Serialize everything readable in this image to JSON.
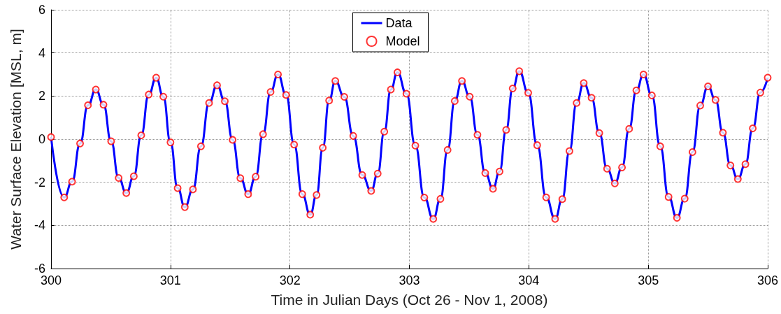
{
  "chart_data": {
    "type": "line",
    "xlabel": "Time in Julian Days (Oct 26 - Nov 1, 2008)",
    "ylabel": "Water Surface Elevation [MSL, m]",
    "x": [
      300.0,
      300.11,
      300.176,
      300.243,
      300.309,
      300.375,
      300.439,
      300.503,
      300.566,
      300.63,
      300.693,
      300.755,
      300.818,
      300.88,
      300.94,
      301.0,
      301.06,
      301.12,
      301.188,
      301.255,
      301.323,
      301.39,
      301.455,
      301.52,
      301.585,
      301.65,
      301.713,
      301.775,
      301.838,
      301.9,
      301.968,
      302.035,
      302.103,
      302.17,
      302.223,
      302.275,
      302.328,
      302.38,
      302.455,
      302.53,
      302.605,
      302.68,
      302.735,
      302.79,
      302.845,
      302.9,
      302.975,
      303.05,
      303.125,
      303.2,
      303.26,
      303.32,
      303.38,
      303.44,
      303.505,
      303.57,
      303.635,
      303.7,
      303.755,
      303.81,
      303.865,
      303.92,
      303.995,
      304.07,
      304.145,
      304.22,
      304.28,
      304.34,
      304.4,
      304.46,
      304.525,
      304.59,
      304.655,
      304.72,
      304.78,
      304.84,
      304.9,
      304.96,
      305.03,
      305.1,
      305.17,
      305.24,
      305.305,
      305.37,
      305.435,
      305.5,
      305.563,
      305.625,
      305.688,
      305.75,
      305.813,
      305.875,
      305.938,
      306.0
    ],
    "series": [
      {
        "name": "Data",
        "type": "line",
        "color": "#0000ff",
        "line_style": "solid",
        "values": [
          0.1,
          -2.7,
          -1.97,
          -0.2,
          1.57,
          2.3,
          1.6,
          -0.1,
          -1.8,
          -2.5,
          -1.72,
          0.18,
          2.07,
          2.85,
          1.97,
          -0.15,
          -2.27,
          -3.15,
          -2.33,
          -0.33,
          1.68,
          2.5,
          1.76,
          -0.03,
          -1.81,
          -2.55,
          -1.74,
          0.23,
          2.19,
          3.0,
          2.05,
          -0.25,
          -2.55,
          -3.5,
          -2.59,
          -0.4,
          1.79,
          2.7,
          1.96,
          0.15,
          -1.66,
          -2.4,
          -1.6,
          0.35,
          2.3,
          3.1,
          2.11,
          -0.3,
          -2.71,
          -3.7,
          -2.77,
          -0.5,
          1.77,
          2.7,
          1.97,
          0.2,
          -1.57,
          -2.3,
          -1.5,
          0.43,
          2.35,
          3.15,
          2.15,
          -0.28,
          -2.7,
          -3.7,
          -2.78,
          -0.55,
          1.68,
          2.6,
          1.92,
          0.28,
          -1.37,
          -2.05,
          -1.31,
          0.48,
          2.26,
          3.0,
          2.03,
          -0.33,
          -2.68,
          -3.65,
          -2.76,
          -0.6,
          1.56,
          2.45,
          1.82,
          0.3,
          -1.22,
          -1.85,
          -1.16,
          0.5,
          2.16,
          2.85
        ]
      },
      {
        "name": "Model",
        "type": "scatter",
        "color": "#ff0000",
        "marker": "circle",
        "values": [
          0.1,
          -2.7,
          -1.97,
          -0.2,
          1.57,
          2.3,
          1.6,
          -0.1,
          -1.8,
          -2.5,
          -1.72,
          0.18,
          2.07,
          2.85,
          1.97,
          -0.15,
          -2.27,
          -3.15,
          -2.33,
          -0.33,
          1.68,
          2.5,
          1.76,
          -0.03,
          -1.81,
          -2.55,
          -1.74,
          0.23,
          2.19,
          3.0,
          2.05,
          -0.25,
          -2.55,
          -3.5,
          -2.59,
          -0.4,
          1.79,
          2.7,
          1.96,
          0.15,
          -1.66,
          -2.4,
          -1.6,
          0.35,
          2.3,
          3.1,
          2.11,
          -0.3,
          -2.71,
          -3.7,
          -2.77,
          -0.5,
          1.77,
          2.7,
          1.97,
          0.2,
          -1.57,
          -2.3,
          -1.5,
          0.43,
          2.35,
          3.15,
          2.15,
          -0.28,
          -2.7,
          -3.7,
          -2.78,
          -0.55,
          1.68,
          2.6,
          1.92,
          0.28,
          -1.37,
          -2.05,
          -1.31,
          0.48,
          2.26,
          3.0,
          2.03,
          -0.33,
          -2.68,
          -3.65,
          -2.76,
          -0.6,
          1.56,
          2.45,
          1.82,
          0.3,
          -1.22,
          -1.85,
          -1.16,
          0.5,
          2.16,
          2.85
        ]
      }
    ],
    "xlim": [
      300,
      306
    ],
    "xticks": [
      300,
      301,
      302,
      303,
      304,
      305,
      306
    ],
    "ylim": [
      -6,
      6
    ],
    "yticks": [
      -6,
      -4,
      -2,
      0,
      2,
      4,
      6
    ],
    "grid": true,
    "legend": "top"
  }
}
